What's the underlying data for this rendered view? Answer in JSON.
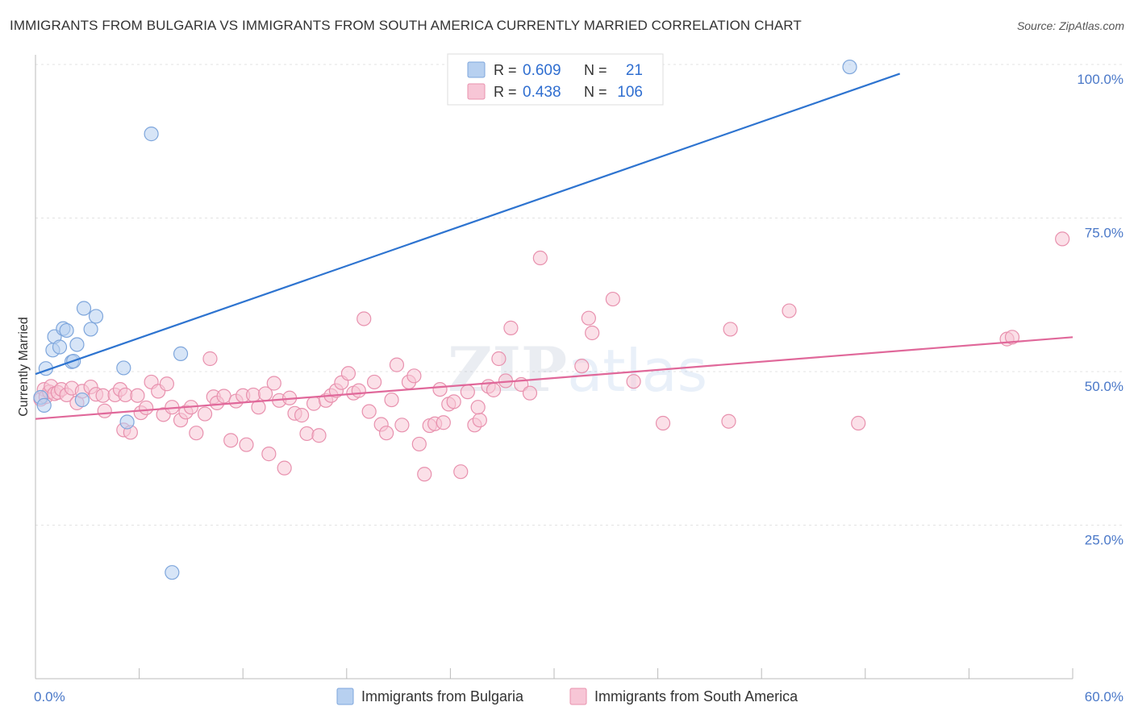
{
  "title": "IMMIGRANTS FROM BULGARIA VS IMMIGRANTS FROM SOUTH AMERICA CURRENTLY MARRIED CORRELATION CHART",
  "source": "Source: ZipAtlas.com",
  "colors": {
    "blue_fill": "#b7d0f0",
    "blue_stroke": "#7ea6dc",
    "blue_line": "#2e74d0",
    "pink_fill": "#f7c6d6",
    "pink_stroke": "#e891ae",
    "pink_line": "#e0689a",
    "tick_text": "#4a78c8",
    "grid": "#e3e3e3"
  },
  "legend": {
    "r_label": "R =",
    "n_label": "N =",
    "blue": {
      "r": "0.609",
      "n": "21"
    },
    "pink": {
      "r": "0.438",
      "n": "106"
    }
  },
  "watermark": "ZIPatlas",
  "chart_data": {
    "type": "scatter",
    "title": "IMMIGRANTS FROM BULGARIA VS IMMIGRANTS FROM SOUTH AMERICA CURRENTLY MARRIED CORRELATION CHART",
    "xlabel": "",
    "ylabel": "Currently Married",
    "xlim": [
      0,
      60
    ],
    "ylim": [
      0,
      100
    ],
    "x_tick_labels": [
      "0.0%",
      "60.0%"
    ],
    "y_ticks": [
      25,
      50,
      75,
      100
    ],
    "y_tick_labels": [
      "25.0%",
      "50.0%",
      "75.0%",
      "100.0%"
    ],
    "grid": true,
    "series": [
      {
        "name": "Immigrants from Bulgaria",
        "color": "blue",
        "trend": [
          [
            0.0,
            49.6
          ],
          [
            50.0,
            98.5
          ]
        ],
        "points": [
          [
            0.3,
            45.8
          ],
          [
            0.6,
            50.5
          ],
          [
            1.0,
            53.5
          ],
          [
            1.1,
            55.7
          ],
          [
            1.4,
            54.0
          ],
          [
            1.6,
            57.0
          ],
          [
            1.8,
            56.7
          ],
          [
            2.1,
            51.6
          ],
          [
            2.2,
            51.7
          ],
          [
            2.4,
            54.4
          ],
          [
            2.7,
            45.4
          ],
          [
            2.8,
            60.3
          ],
          [
            3.2,
            56.9
          ],
          [
            3.5,
            59.0
          ],
          [
            5.1,
            50.6
          ],
          [
            5.3,
            41.8
          ],
          [
            6.7,
            88.7
          ],
          [
            7.9,
            17.3
          ],
          [
            8.4,
            52.9
          ],
          [
            47.1,
            99.6
          ],
          [
            0.5,
            44.5
          ]
        ]
      },
      {
        "name": "Immigrants from South America",
        "color": "pink",
        "trend": [
          [
            0.0,
            42.3
          ],
          [
            60.0,
            55.6
          ]
        ],
        "points": [
          [
            0.3,
            45.5
          ],
          [
            0.5,
            47.1
          ],
          [
            0.6,
            45.9
          ],
          [
            0.8,
            46.7
          ],
          [
            0.9,
            47.6
          ],
          [
            1.1,
            46.4
          ],
          [
            1.3,
            46.6
          ],
          [
            1.5,
            47.1
          ],
          [
            1.8,
            46.2
          ],
          [
            2.1,
            47.3
          ],
          [
            2.4,
            44.9
          ],
          [
            2.7,
            46.8
          ],
          [
            3.2,
            47.5
          ],
          [
            3.5,
            46.3
          ],
          [
            3.9,
            46.1
          ],
          [
            4.0,
            43.6
          ],
          [
            4.6,
            46.2
          ],
          [
            4.9,
            47.1
          ],
          [
            5.1,
            40.5
          ],
          [
            5.2,
            46.2
          ],
          [
            5.5,
            40.1
          ],
          [
            5.9,
            46.1
          ],
          [
            6.1,
            43.3
          ],
          [
            6.4,
            44.1
          ],
          [
            6.7,
            48.3
          ],
          [
            7.1,
            46.8
          ],
          [
            7.4,
            43.0
          ],
          [
            7.6,
            48.0
          ],
          [
            7.9,
            44.2
          ],
          [
            8.4,
            42.1
          ],
          [
            8.7,
            43.4
          ],
          [
            9.0,
            44.2
          ],
          [
            9.3,
            40.0
          ],
          [
            9.8,
            43.1
          ],
          [
            10.1,
            52.1
          ],
          [
            10.3,
            45.9
          ],
          [
            10.5,
            44.9
          ],
          [
            10.9,
            46.0
          ],
          [
            11.3,
            38.8
          ],
          [
            11.6,
            45.2
          ],
          [
            12.0,
            46.1
          ],
          [
            12.2,
            38.1
          ],
          [
            12.6,
            46.2
          ],
          [
            12.9,
            44.2
          ],
          [
            13.3,
            46.4
          ],
          [
            13.5,
            36.6
          ],
          [
            13.8,
            48.1
          ],
          [
            14.1,
            45.3
          ],
          [
            14.4,
            34.3
          ],
          [
            14.7,
            45.7
          ],
          [
            15.0,
            43.2
          ],
          [
            15.4,
            42.9
          ],
          [
            15.7,
            39.9
          ],
          [
            16.1,
            44.8
          ],
          [
            16.4,
            39.6
          ],
          [
            16.8,
            45.3
          ],
          [
            17.1,
            46.1
          ],
          [
            17.4,
            46.9
          ],
          [
            17.7,
            48.2
          ],
          [
            18.1,
            49.7
          ],
          [
            18.4,
            46.5
          ],
          [
            18.7,
            46.9
          ],
          [
            19.0,
            58.6
          ],
          [
            19.3,
            43.5
          ],
          [
            19.6,
            48.3
          ],
          [
            20.0,
            41.4
          ],
          [
            20.3,
            40.0
          ],
          [
            20.6,
            45.4
          ],
          [
            20.9,
            51.1
          ],
          [
            21.2,
            41.3
          ],
          [
            21.6,
            48.3
          ],
          [
            21.9,
            49.3
          ],
          [
            22.2,
            38.2
          ],
          [
            22.5,
            33.3
          ],
          [
            22.8,
            41.2
          ],
          [
            23.1,
            41.5
          ],
          [
            23.4,
            47.1
          ],
          [
            23.6,
            41.7
          ],
          [
            23.9,
            44.7
          ],
          [
            24.2,
            45.1
          ],
          [
            24.6,
            33.7
          ],
          [
            25.0,
            46.7
          ],
          [
            25.4,
            41.3
          ],
          [
            25.7,
            42.1
          ],
          [
            25.6,
            44.2
          ],
          [
            26.2,
            47.6
          ],
          [
            26.5,
            47.0
          ],
          [
            26.8,
            52.1
          ],
          [
            27.2,
            48.5
          ],
          [
            27.5,
            57.1
          ],
          [
            28.1,
            47.9
          ],
          [
            28.6,
            46.5
          ],
          [
            29.2,
            68.5
          ],
          [
            31.6,
            50.9
          ],
          [
            32.0,
            58.7
          ],
          [
            32.2,
            56.3
          ],
          [
            33.4,
            61.8
          ],
          [
            34.6,
            48.4
          ],
          [
            36.3,
            41.6
          ],
          [
            40.1,
            41.9
          ],
          [
            40.2,
            56.9
          ],
          [
            43.6,
            59.9
          ],
          [
            47.6,
            41.6
          ],
          [
            56.2,
            55.3
          ],
          [
            56.5,
            55.6
          ],
          [
            59.4,
            71.6
          ]
        ]
      }
    ],
    "legend_position": "top-center"
  }
}
